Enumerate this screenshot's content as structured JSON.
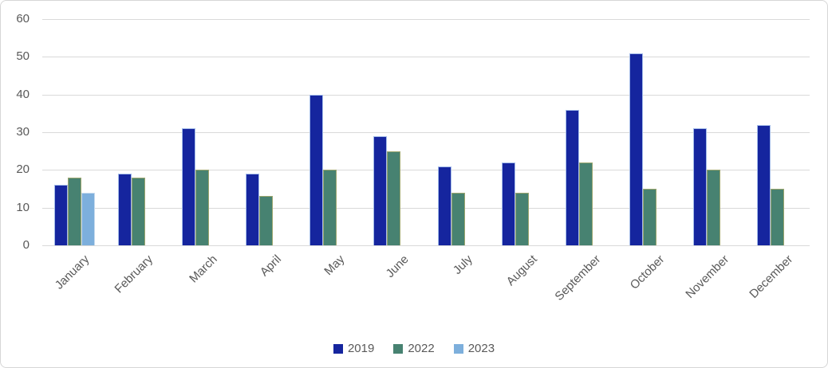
{
  "chart_data": {
    "type": "bar",
    "title": "",
    "xlabel": "",
    "ylabel": "",
    "categories": [
      "January",
      "February",
      "March",
      "April",
      "May",
      "June",
      "July",
      "August",
      "September",
      "October",
      "November",
      "December"
    ],
    "series": [
      {
        "name": "2019",
        "color": "#15259e",
        "border_color": "#a3bbe9",
        "values": [
          16,
          19,
          31,
          19,
          40,
          29,
          21,
          22,
          36,
          51,
          31,
          32
        ]
      },
      {
        "name": "2022",
        "color": "#478271",
        "border_color": "#9ca66e",
        "values": [
          18,
          18,
          20,
          13,
          20,
          25,
          14,
          14,
          22,
          15,
          20,
          15
        ]
      },
      {
        "name": "2023",
        "color": "#7dafdc",
        "border_color": "#c6daee",
        "values": [
          14,
          null,
          null,
          null,
          null,
          null,
          null,
          null,
          null,
          null,
          null,
          null
        ]
      }
    ],
    "ylim": [
      0,
      60
    ],
    "yticks": [
      0,
      10,
      20,
      30,
      40,
      50,
      60
    ],
    "grid": "horizontal",
    "gridline_color": "#d9d9d9",
    "axis_label_color": "#595959",
    "legend_position": "bottom",
    "x_label_rotation_deg": 45
  }
}
